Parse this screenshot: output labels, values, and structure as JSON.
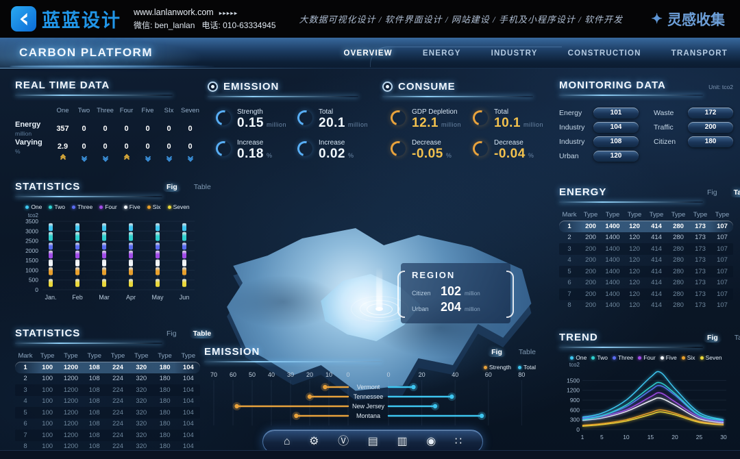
{
  "topbar": {
    "logo": "蓝蓝设计",
    "website": "www.lanlanwork.com",
    "wechat": "微信: ben_lanlan",
    "phone": "电话: 010-63334945",
    "services": "大数据可视化设计 / 软件界面设计 / 网站建设 / 手机及小程序设计 / 软件开发",
    "collect": "灵感收集"
  },
  "icons": {
    "website_arrows": "▸▸▸▸▸",
    "collect_star": "✦"
  },
  "header": {
    "title": "CARBON PLATFORM",
    "nav": [
      {
        "label": "OVERVIEW",
        "active": true
      },
      {
        "label": "ENERGY",
        "active": false
      },
      {
        "label": "INDUSTRY",
        "active": false
      },
      {
        "label": "CONSTRUCTION",
        "active": false
      },
      {
        "label": "TRANSPORT",
        "active": false
      }
    ]
  },
  "realtime": {
    "title": "REAL TIME DATA",
    "columns": [
      "One",
      "Two",
      "Three",
      "Four",
      "Five",
      "SIx",
      "Seven"
    ],
    "rows": [
      {
        "label": "Energy",
        "unit": "million",
        "values": [
          "357",
          "0",
          "0",
          "0",
          "0",
          "0",
          "0"
        ]
      },
      {
        "label": "Varying",
        "unit": "%",
        "values": [
          "2.9",
          "0",
          "0",
          "0",
          "0",
          "0",
          "0"
        ],
        "trends": [
          "up",
          "down",
          "down",
          "up",
          "down",
          "down",
          "down"
        ]
      }
    ]
  },
  "emission_summary": {
    "title": "EMISSION",
    "accent": "#58aef5",
    "value_color": "#f2f9ff",
    "items": [
      {
        "label": "Strength",
        "value": "0.15",
        "unit": "million"
      },
      {
        "label": "Total",
        "value": "20.1",
        "unit": "million"
      },
      {
        "label": "Increase",
        "value": "0.18",
        "unit": "%"
      },
      {
        "label": "Increase",
        "value": "0.02",
        "unit": "%"
      }
    ]
  },
  "consume_summary": {
    "title": "CONSUME",
    "accent": "#e8a23c",
    "value_color": "#f2c14e",
    "items": [
      {
        "label": "GDP Depletion",
        "value": "12.1",
        "unit": "million"
      },
      {
        "label": "Total",
        "value": "10.1",
        "unit": "million"
      },
      {
        "label": "Decrease",
        "value": "-0.05",
        "unit": "%"
      },
      {
        "label": "Decrease",
        "value": "-0.04",
        "unit": "%"
      }
    ]
  },
  "monitoring": {
    "title": "MONITORING DATA",
    "unit": "Unit: tco2",
    "left": [
      {
        "label": "Energy",
        "value": "101"
      },
      {
        "label": "Industry",
        "value": "104"
      },
      {
        "label": "Industry",
        "value": "108"
      },
      {
        "label": "Urban",
        "value": "120"
      }
    ],
    "right": [
      {
        "label": "Waste",
        "value": "172"
      },
      {
        "label": "Traffic",
        "value": "200"
      },
      {
        "label": "Citizen",
        "value": "180"
      }
    ]
  },
  "region": {
    "title": "REGION",
    "rows": [
      {
        "label": "Citizen",
        "value": "102",
        "unit": "million"
      },
      {
        "label": "Urban",
        "value": "204",
        "unit": "million"
      }
    ]
  },
  "series_colors": {
    "One": "#3ec6f0",
    "Two": "#2fd0cf",
    "Three": "#5a6cf0",
    "Four": "#a14ce8",
    "Five": "#f2f6fb",
    "Six": "#e8a02c",
    "Seven": "#ead83a"
  },
  "dock": [
    {
      "name": "home-icon",
      "glyph": "⌂"
    },
    {
      "name": "gear-icon",
      "glyph": "⚙"
    },
    {
      "name": "circle-v-icon",
      "glyph": "Ⓥ"
    },
    {
      "name": "kiosk-icon",
      "glyph": "▤"
    },
    {
      "name": "chart-window-icon",
      "glyph": "▥"
    },
    {
      "name": "nut-icon",
      "glyph": "◉"
    },
    {
      "name": "apps-grid-icon",
      "glyph": "∷"
    }
  ],
  "chart_data": [
    {
      "id": "statistics_fig",
      "type": "scatter",
      "title": "STATISTICS",
      "tabs": [
        {
          "label": "Fig",
          "active": true
        },
        {
          "label": "Table",
          "active": false
        }
      ],
      "ylabel": "tco2",
      "ylim": [
        0,
        3500
      ],
      "yticks": [
        3500,
        3000,
        2500,
        2000,
        1500,
        1000,
        500,
        0
      ],
      "categories": [
        "Jan.",
        "Feb",
        "Mar",
        "Apr",
        "May",
        "Jun"
      ],
      "legend": [
        "One",
        "Two",
        "Three",
        "Four",
        "Five",
        "Six",
        "Seven"
      ],
      "series": [
        {
          "name": "One",
          "range": [
            3000,
            3400
          ]
        },
        {
          "name": "Two",
          "range": [
            2500,
            2950
          ]
        },
        {
          "name": "Three",
          "range": [
            2050,
            2400
          ]
        },
        {
          "name": "Four",
          "range": [
            1600,
            2000
          ]
        },
        {
          "name": "Five",
          "range": [
            1200,
            1550
          ]
        },
        {
          "name": "Six",
          "range": [
            750,
            1150
          ]
        },
        {
          "name": "Seven",
          "range": [
            150,
            550
          ]
        }
      ]
    },
    {
      "id": "energy_table",
      "type": "table",
      "title": "ENERGY",
      "tabs": [
        {
          "label": "Fig",
          "active": false
        },
        {
          "label": "Table",
          "active": true
        }
      ],
      "headers": [
        "Mark",
        "Type",
        "Type",
        "Type",
        "Type",
        "Type",
        "Type",
        "Type"
      ],
      "highlight_row": 0,
      "rows": [
        [
          "1",
          "200",
          "1400",
          "120",
          "414",
          "280",
          "173",
          "107"
        ],
        [
          "2",
          "200",
          "1400",
          "120",
          "414",
          "280",
          "173",
          "107"
        ],
        [
          "3",
          "200",
          "1400",
          "120",
          "414",
          "280",
          "173",
          "107"
        ],
        [
          "4",
          "200",
          "1400",
          "120",
          "414",
          "280",
          "173",
          "107"
        ],
        [
          "5",
          "200",
          "1400",
          "120",
          "414",
          "280",
          "173",
          "107"
        ],
        [
          "6",
          "200",
          "1400",
          "120",
          "414",
          "280",
          "173",
          "107"
        ],
        [
          "7",
          "200",
          "1400",
          "120",
          "414",
          "280",
          "173",
          "107"
        ],
        [
          "8",
          "200",
          "1400",
          "120",
          "414",
          "280",
          "173",
          "107"
        ]
      ]
    },
    {
      "id": "statistics_table",
      "type": "table",
      "title": "STATISTICS",
      "tabs": [
        {
          "label": "Fig",
          "active": false
        },
        {
          "label": "Table",
          "active": true
        }
      ],
      "headers": [
        "Mark",
        "Type",
        "Type",
        "Type",
        "Type",
        "Type",
        "Type",
        "Type"
      ],
      "highlight_row": 0,
      "rows": [
        [
          "1",
          "100",
          "1200",
          "108",
          "224",
          "320",
          "180",
          "104"
        ],
        [
          "2",
          "100",
          "1200",
          "108",
          "224",
          "320",
          "180",
          "104"
        ],
        [
          "3",
          "100",
          "1200",
          "108",
          "224",
          "320",
          "180",
          "104"
        ],
        [
          "4",
          "100",
          "1200",
          "108",
          "224",
          "320",
          "180",
          "104"
        ],
        [
          "5",
          "100",
          "1200",
          "108",
          "224",
          "320",
          "180",
          "104"
        ],
        [
          "6",
          "100",
          "1200",
          "108",
          "224",
          "320",
          "180",
          "104"
        ],
        [
          "7",
          "100",
          "1200",
          "108",
          "224",
          "320",
          "180",
          "104"
        ],
        [
          "8",
          "100",
          "1200",
          "108",
          "224",
          "320",
          "180",
          "104"
        ]
      ]
    },
    {
      "id": "emission_chart",
      "type": "bar",
      "title": "EMISSION",
      "tabs": [
        {
          "label": "Fig",
          "active": true
        },
        {
          "label": "Table",
          "active": false
        }
      ],
      "legend": [
        {
          "name": "Strength",
          "color": "#e8a23c"
        },
        {
          "name": "Total",
          "color": "#3ec6f0"
        }
      ],
      "left_axis_ticks": [
        70,
        60,
        50,
        40,
        30,
        20,
        10,
        0
      ],
      "right_axis_ticks": [
        0,
        20,
        40,
        60,
        80
      ],
      "rows": [
        {
          "name": "Vermont",
          "strength": 12,
          "total": 15
        },
        {
          "name": "Tennessee",
          "strength": 20,
          "total": 38
        },
        {
          "name": "New Jersey",
          "strength": 58,
          "total": 28
        },
        {
          "name": "Montana",
          "strength": 27,
          "total": 56
        }
      ]
    },
    {
      "id": "trend",
      "type": "line",
      "title": "TREND",
      "tabs": [
        {
          "label": "Fig",
          "active": true
        },
        {
          "label": "Table",
          "active": false
        }
      ],
      "ylabel": "tco2",
      "ylim": [
        0,
        1800
      ],
      "yticks": [
        1500,
        1200,
        900,
        600,
        300,
        0
      ],
      "xticks": [
        1,
        5,
        10,
        15,
        20,
        25,
        30
      ],
      "x": [
        1,
        5,
        10,
        15,
        17,
        20,
        25,
        30
      ],
      "legend": [
        "One",
        "Two",
        "Three",
        "Four",
        "Five",
        "Six",
        "Seven"
      ],
      "series": [
        {
          "name": "One",
          "values": [
            380,
            500,
            900,
            1600,
            1750,
            1250,
            520,
            300
          ]
        },
        {
          "name": "Two",
          "values": [
            300,
            420,
            750,
            1300,
            1430,
            1100,
            450,
            280
          ]
        },
        {
          "name": "Three",
          "values": [
            350,
            430,
            700,
            1200,
            1340,
            1050,
            430,
            260
          ]
        },
        {
          "name": "Four",
          "values": [
            330,
            400,
            600,
            1000,
            1120,
            850,
            380,
            230
          ]
        },
        {
          "name": "Five",
          "values": [
            280,
            350,
            550,
            880,
            960,
            750,
            330,
            200
          ]
        },
        {
          "name": "Six",
          "values": [
            130,
            180,
            300,
            520,
            600,
            500,
            250,
            160
          ]
        },
        {
          "name": "Seven",
          "values": [
            100,
            150,
            260,
            460,
            540,
            450,
            220,
            140
          ]
        }
      ]
    }
  ]
}
